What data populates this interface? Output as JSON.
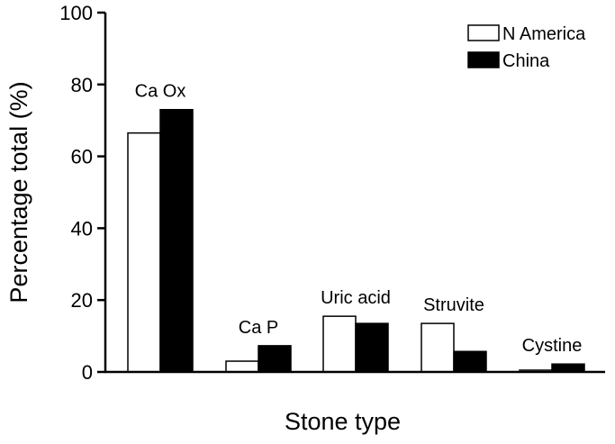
{
  "chart_data": {
    "type": "bar",
    "title": "",
    "xlabel": "Stone type",
    "ylabel": "Percentage total (%)",
    "ylim": [
      0,
      100
    ],
    "yticks": [
      0,
      20,
      40,
      60,
      80,
      100
    ],
    "categories": [
      "Ca Ox",
      "Ca P",
      "Uric acid",
      "Struvite",
      "Cystine"
    ],
    "series": [
      {
        "name": "N America",
        "values": [
          66.5,
          3,
          15.5,
          13.5,
          0.5
        ],
        "color": "#ffffff",
        "stroke": "#000000"
      },
      {
        "name": "China",
        "values": [
          73,
          7.3,
          13.5,
          5.7,
          2.2
        ],
        "color": "#000000",
        "stroke": "#000000"
      }
    ],
    "grid": false,
    "legend_position": "top-right"
  }
}
